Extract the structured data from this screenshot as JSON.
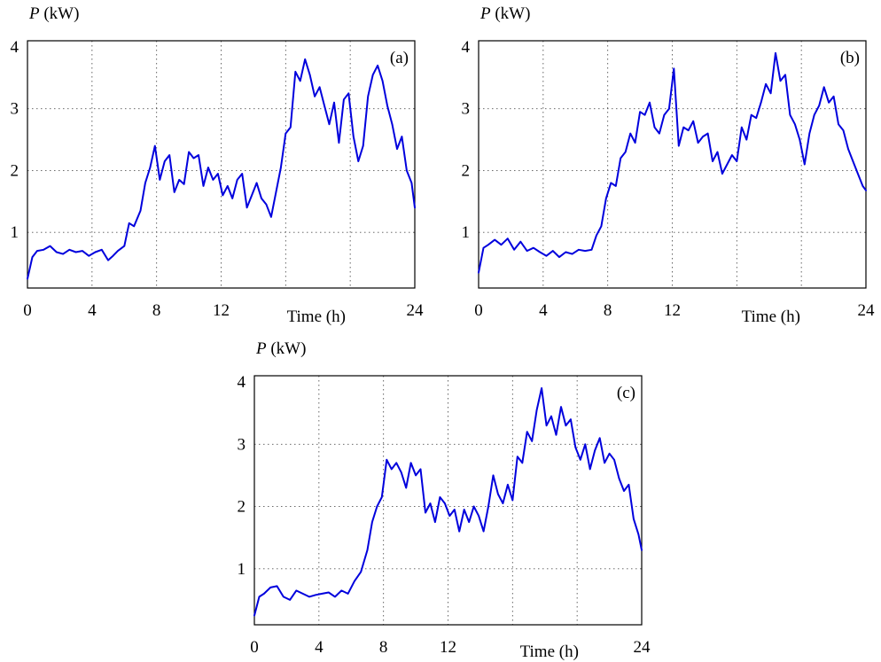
{
  "chart_data": [
    {
      "type": "line",
      "panel_label": "(a)",
      "ylabel_symbol": "P",
      "ylabel_unit": " (kW)",
      "xlabel": "Time (h)",
      "xlim": [
        0,
        24
      ],
      "ylim": [
        0.1,
        4.1
      ],
      "xticks": [
        0,
        4,
        8,
        12,
        24
      ],
      "yticks": [
        1,
        2,
        3,
        4
      ],
      "grid_x": [
        4,
        8,
        12,
        16,
        20
      ],
      "grid_y": [
        1,
        2,
        3
      ],
      "grid": true,
      "series": [
        {
          "color": "#0000dd",
          "x": [
            0,
            0.3,
            0.6,
            1,
            1.4,
            1.8,
            2.2,
            2.6,
            3,
            3.4,
            3.8,
            4.2,
            4.6,
            5,
            5.3,
            5.6,
            6,
            6.3,
            6.6,
            7,
            7.3,
            7.6,
            7.9,
            8.2,
            8.5,
            8.8,
            9.1,
            9.4,
            9.7,
            10,
            10.3,
            10.6,
            10.9,
            11.2,
            11.5,
            11.8,
            12.1,
            12.4,
            12.7,
            13,
            13.3,
            13.6,
            13.9,
            14.2,
            14.5,
            14.8,
            15.1,
            15.4,
            15.7,
            16,
            16.3,
            16.6,
            16.9,
            17.2,
            17.5,
            17.8,
            18.1,
            18.4,
            18.7,
            19,
            19.3,
            19.6,
            19.9,
            20.2,
            20.5,
            20.8,
            21.1,
            21.4,
            21.7,
            22,
            22.3,
            22.6,
            22.9,
            23.2,
            23.5,
            23.8,
            24
          ],
          "y": [
            0.25,
            0.6,
            0.7,
            0.72,
            0.78,
            0.68,
            0.65,
            0.72,
            0.68,
            0.7,
            0.62,
            0.68,
            0.72,
            0.55,
            0.62,
            0.7,
            0.78,
            1.15,
            1.1,
            1.35,
            1.8,
            2.05,
            2.4,
            1.85,
            2.15,
            2.25,
            1.65,
            1.85,
            1.78,
            2.3,
            2.2,
            2.25,
            1.75,
            2.05,
            1.85,
            1.95,
            1.6,
            1.75,
            1.55,
            1.85,
            1.95,
            1.4,
            1.6,
            1.8,
            1.55,
            1.45,
            1.25,
            1.65,
            2.05,
            2.6,
            2.7,
            3.6,
            3.45,
            3.8,
            3.55,
            3.2,
            3.35,
            3.05,
            2.75,
            3.1,
            2.45,
            3.15,
            3.25,
            2.55,
            2.15,
            2.4,
            3.2,
            3.55,
            3.7,
            3.45,
            3.05,
            2.75,
            2.35,
            2.55,
            2.0,
            1.8,
            1.4
          ]
        }
      ]
    },
    {
      "type": "line",
      "panel_label": "(b)",
      "ylabel_symbol": "P",
      "ylabel_unit": " (kW)",
      "xlabel": "Time (h)",
      "xlim": [
        0,
        24
      ],
      "ylim": [
        0.1,
        4.1
      ],
      "xticks": [
        0,
        4,
        8,
        12,
        24
      ],
      "yticks": [
        1,
        2,
        3,
        4
      ],
      "grid_x": [
        4,
        8,
        12,
        16,
        20
      ],
      "grid_y": [
        1,
        2,
        3
      ],
      "grid": true,
      "series": [
        {
          "color": "#0000dd",
          "x": [
            0,
            0.3,
            0.6,
            1,
            1.4,
            1.8,
            2.2,
            2.6,
            3,
            3.4,
            3.8,
            4.2,
            4.6,
            5,
            5.4,
            5.8,
            6.2,
            6.6,
            7,
            7.3,
            7.6,
            7.9,
            8.2,
            8.5,
            8.8,
            9.1,
            9.4,
            9.7,
            10,
            10.3,
            10.6,
            10.9,
            11.2,
            11.5,
            11.8,
            12.1,
            12.4,
            12.7,
            13,
            13.3,
            13.6,
            13.9,
            14.2,
            14.5,
            14.8,
            15.1,
            15.4,
            15.7,
            16,
            16.3,
            16.6,
            16.9,
            17.2,
            17.5,
            17.8,
            18.1,
            18.4,
            18.7,
            19,
            19.3,
            19.6,
            19.9,
            20.2,
            20.5,
            20.8,
            21.1,
            21.4,
            21.7,
            22,
            22.3,
            22.6,
            22.9,
            23.2,
            23.5,
            23.8,
            24
          ],
          "y": [
            0.35,
            0.75,
            0.8,
            0.88,
            0.8,
            0.9,
            0.72,
            0.85,
            0.7,
            0.75,
            0.68,
            0.62,
            0.7,
            0.6,
            0.68,
            0.65,
            0.72,
            0.7,
            0.72,
            0.95,
            1.1,
            1.55,
            1.8,
            1.75,
            2.2,
            2.3,
            2.6,
            2.45,
            2.95,
            2.9,
            3.1,
            2.7,
            2.6,
            2.9,
            3.0,
            3.65,
            2.4,
            2.7,
            2.65,
            2.8,
            2.45,
            2.55,
            2.6,
            2.15,
            2.3,
            1.95,
            2.1,
            2.25,
            2.15,
            2.7,
            2.5,
            2.9,
            2.85,
            3.1,
            3.4,
            3.25,
            3.9,
            3.45,
            3.55,
            2.9,
            2.75,
            2.5,
            2.1,
            2.6,
            2.9,
            3.05,
            3.35,
            3.1,
            3.2,
            2.75,
            2.65,
            2.35,
            2.15,
            1.95,
            1.75,
            1.68
          ]
        }
      ]
    },
    {
      "type": "line",
      "panel_label": "(c)",
      "ylabel_symbol": "P",
      "ylabel_unit": " (kW)",
      "xlabel": "Time (h)",
      "xlim": [
        0,
        24
      ],
      "ylim": [
        0.1,
        4.1
      ],
      "xticks": [
        0,
        4,
        8,
        12,
        24
      ],
      "yticks": [
        1,
        2,
        3,
        4
      ],
      "grid_x": [
        4,
        8,
        12,
        16,
        20
      ],
      "grid_y": [
        1,
        2,
        3
      ],
      "grid": true,
      "series": [
        {
          "color": "#0000dd",
          "x": [
            0,
            0.3,
            0.6,
            1,
            1.4,
            1.8,
            2.2,
            2.6,
            3,
            3.4,
            3.8,
            4.2,
            4.6,
            5,
            5.4,
            5.8,
            6.2,
            6.6,
            7,
            7.3,
            7.6,
            7.9,
            8.2,
            8.5,
            8.8,
            9.1,
            9.4,
            9.7,
            10,
            10.3,
            10.6,
            10.9,
            11.2,
            11.5,
            11.8,
            12.1,
            12.4,
            12.7,
            13,
            13.3,
            13.6,
            13.9,
            14.2,
            14.5,
            14.8,
            15.1,
            15.4,
            15.7,
            16,
            16.3,
            16.6,
            16.9,
            17.2,
            17.5,
            17.8,
            18.1,
            18.4,
            18.7,
            19,
            19.3,
            19.6,
            19.9,
            20.2,
            20.5,
            20.8,
            21.1,
            21.4,
            21.7,
            22,
            22.3,
            22.6,
            22.9,
            23.2,
            23.5,
            23.8,
            24
          ],
          "y": [
            0.25,
            0.55,
            0.6,
            0.7,
            0.72,
            0.55,
            0.5,
            0.65,
            0.6,
            0.55,
            0.58,
            0.6,
            0.62,
            0.55,
            0.65,
            0.6,
            0.8,
            0.95,
            1.3,
            1.75,
            2.0,
            2.15,
            2.75,
            2.6,
            2.7,
            2.55,
            2.3,
            2.7,
            2.5,
            2.6,
            1.9,
            2.05,
            1.75,
            2.15,
            2.05,
            1.85,
            1.95,
            1.6,
            1.95,
            1.75,
            2.0,
            1.85,
            1.6,
            2.0,
            2.5,
            2.2,
            2.05,
            2.35,
            2.1,
            2.8,
            2.7,
            3.2,
            3.05,
            3.55,
            3.9,
            3.3,
            3.45,
            3.15,
            3.6,
            3.3,
            3.4,
            2.95,
            2.75,
            3.0,
            2.6,
            2.9,
            3.1,
            2.7,
            2.85,
            2.75,
            2.45,
            2.25,
            2.35,
            1.8,
            1.55,
            1.3
          ]
        }
      ]
    }
  ]
}
